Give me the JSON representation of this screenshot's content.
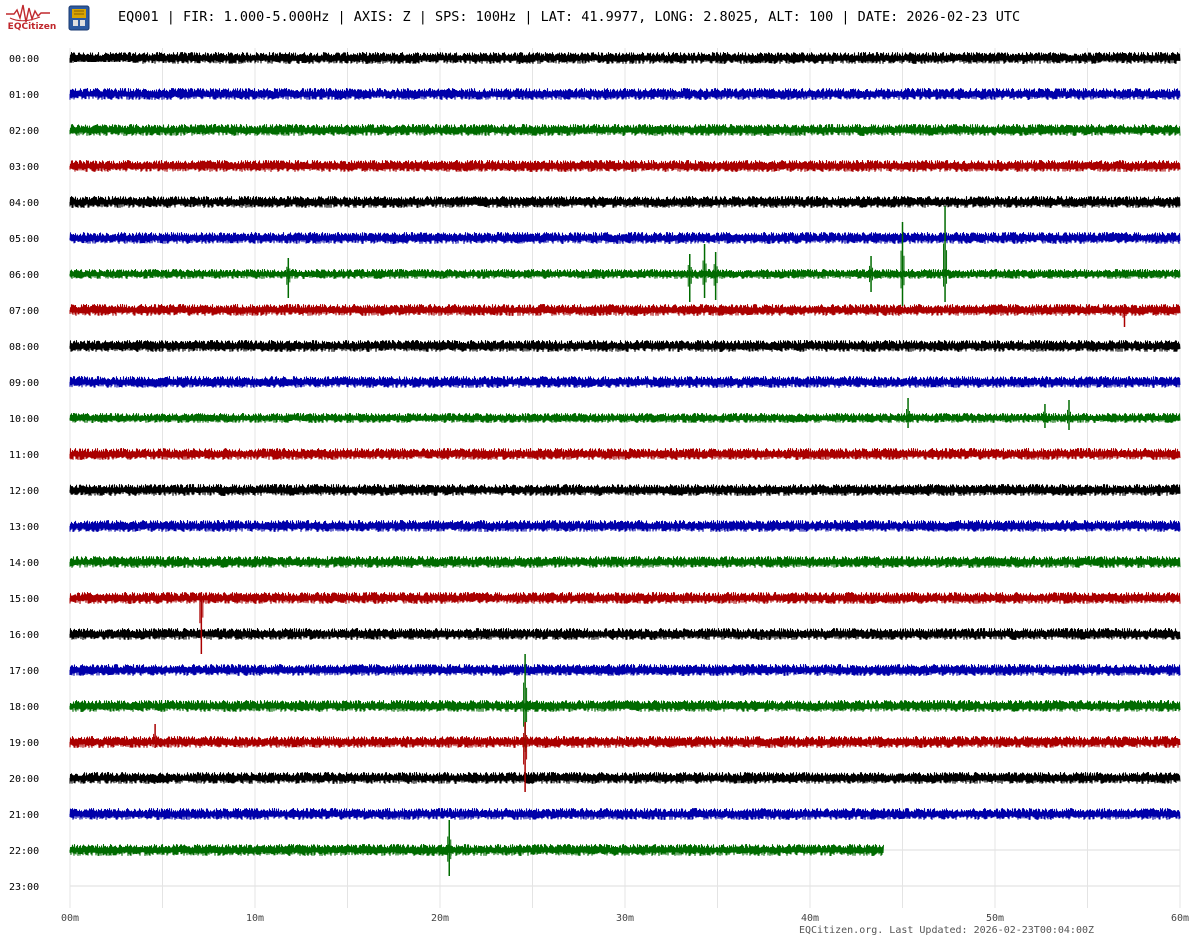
{
  "header": {
    "logo_text": "EQCitizen",
    "title": "EQ001 | FIR: 1.000-5.000Hz | AXIS: Z | SPS: 100Hz | LAT: 41.9977, LONG: 2.8025, ALT: 100 | DATE: 2026-02-23 UTC"
  },
  "chart_data": {
    "type": "line",
    "subtype": "helicorder",
    "title": "EQ001 | FIR: 1.000-5.000Hz | AXIS: Z | SPS: 100Hz | LAT: 41.9977, LONG: 2.8025, ALT: 100 | DATE: 2026-02-23 UTC",
    "y_tick_labels": [
      "00:00",
      "01:00",
      "02:00",
      "03:00",
      "04:00",
      "05:00",
      "06:00",
      "07:00",
      "08:00",
      "09:00",
      "10:00",
      "11:00",
      "12:00",
      "13:00",
      "14:00",
      "15:00",
      "16:00",
      "17:00",
      "18:00",
      "19:00",
      "20:00",
      "21:00",
      "22:00",
      "23:00"
    ],
    "x_tick_labels": [
      "00m",
      "10m",
      "20m",
      "30m",
      "40m",
      "50m",
      "60m"
    ],
    "x_minor_interval_min": 5,
    "xlim": [
      0,
      60
    ],
    "grid": true,
    "trace_colors": [
      "#000000",
      "#0000aa",
      "#006b00",
      "#aa0000"
    ],
    "traces": [
      {
        "hour": 0,
        "amplitude": 6,
        "end_min": 60
      },
      {
        "hour": 1,
        "amplitude": 6,
        "end_min": 60
      },
      {
        "hour": 2,
        "amplitude": 6,
        "end_min": 60
      },
      {
        "hour": 3,
        "amplitude": 6,
        "end_min": 60
      },
      {
        "hour": 4,
        "amplitude": 6,
        "end_min": 60
      },
      {
        "hour": 5,
        "amplitude": 6,
        "end_min": 60
      },
      {
        "hour": 6,
        "amplitude": 5,
        "end_min": 60
      },
      {
        "hour": 7,
        "amplitude": 6,
        "end_min": 60
      },
      {
        "hour": 8,
        "amplitude": 6,
        "end_min": 60
      },
      {
        "hour": 9,
        "amplitude": 6,
        "end_min": 60
      },
      {
        "hour": 10,
        "amplitude": 5,
        "end_min": 60
      },
      {
        "hour": 11,
        "amplitude": 6,
        "end_min": 60
      },
      {
        "hour": 12,
        "amplitude": 6,
        "end_min": 60
      },
      {
        "hour": 13,
        "amplitude": 6,
        "end_min": 60
      },
      {
        "hour": 14,
        "amplitude": 6,
        "end_min": 60
      },
      {
        "hour": 15,
        "amplitude": 6,
        "end_min": 60
      },
      {
        "hour": 16,
        "amplitude": 6,
        "end_min": 60
      },
      {
        "hour": 17,
        "amplitude": 6,
        "end_min": 60
      },
      {
        "hour": 18,
        "amplitude": 6,
        "end_min": 60
      },
      {
        "hour": 19,
        "amplitude": 6,
        "end_min": 60
      },
      {
        "hour": 20,
        "amplitude": 6,
        "end_min": 60
      },
      {
        "hour": 21,
        "amplitude": 6,
        "end_min": 60
      },
      {
        "hour": 22,
        "amplitude": 6,
        "end_min": 44
      }
    ],
    "events": [
      {
        "hour": 6,
        "minute": 11.8,
        "up": 16,
        "down": 24
      },
      {
        "hour": 6,
        "minute": 33.5,
        "up": 20,
        "down": 28
      },
      {
        "hour": 6,
        "minute": 34.3,
        "up": 30,
        "down": 24
      },
      {
        "hour": 6,
        "minute": 34.9,
        "up": 22,
        "down": 26
      },
      {
        "hour": 6,
        "minute": 43.3,
        "up": 18,
        "down": 18
      },
      {
        "hour": 6,
        "minute": 45.0,
        "up": 52,
        "down": 32
      },
      {
        "hour": 6,
        "minute": 47.3,
        "up": 68,
        "down": 28
      },
      {
        "hour": 7,
        "minute": 57.0,
        "up": 6,
        "down": 17
      },
      {
        "hour": 10,
        "minute": 45.3,
        "up": 20,
        "down": 10
      },
      {
        "hour": 10,
        "minute": 52.7,
        "up": 14,
        "down": 10
      },
      {
        "hour": 10,
        "minute": 54.0,
        "up": 18,
        "down": 12
      },
      {
        "hour": 15,
        "minute": 7.1,
        "up": 6,
        "down": 56
      },
      {
        "hour": 18,
        "minute": 24.6,
        "up": 52,
        "down": 46
      },
      {
        "hour": 19,
        "minute": 24.6,
        "up": 20,
        "down": 50
      },
      {
        "hour": 19,
        "minute": 4.6,
        "up": 18,
        "down": 6
      },
      {
        "hour": 22,
        "minute": 20.5,
        "up": 30,
        "down": 26
      }
    ]
  },
  "footer": {
    "text": "EQCitizen.org. Last Updated: 2026-02-23T00:04:00Z"
  }
}
